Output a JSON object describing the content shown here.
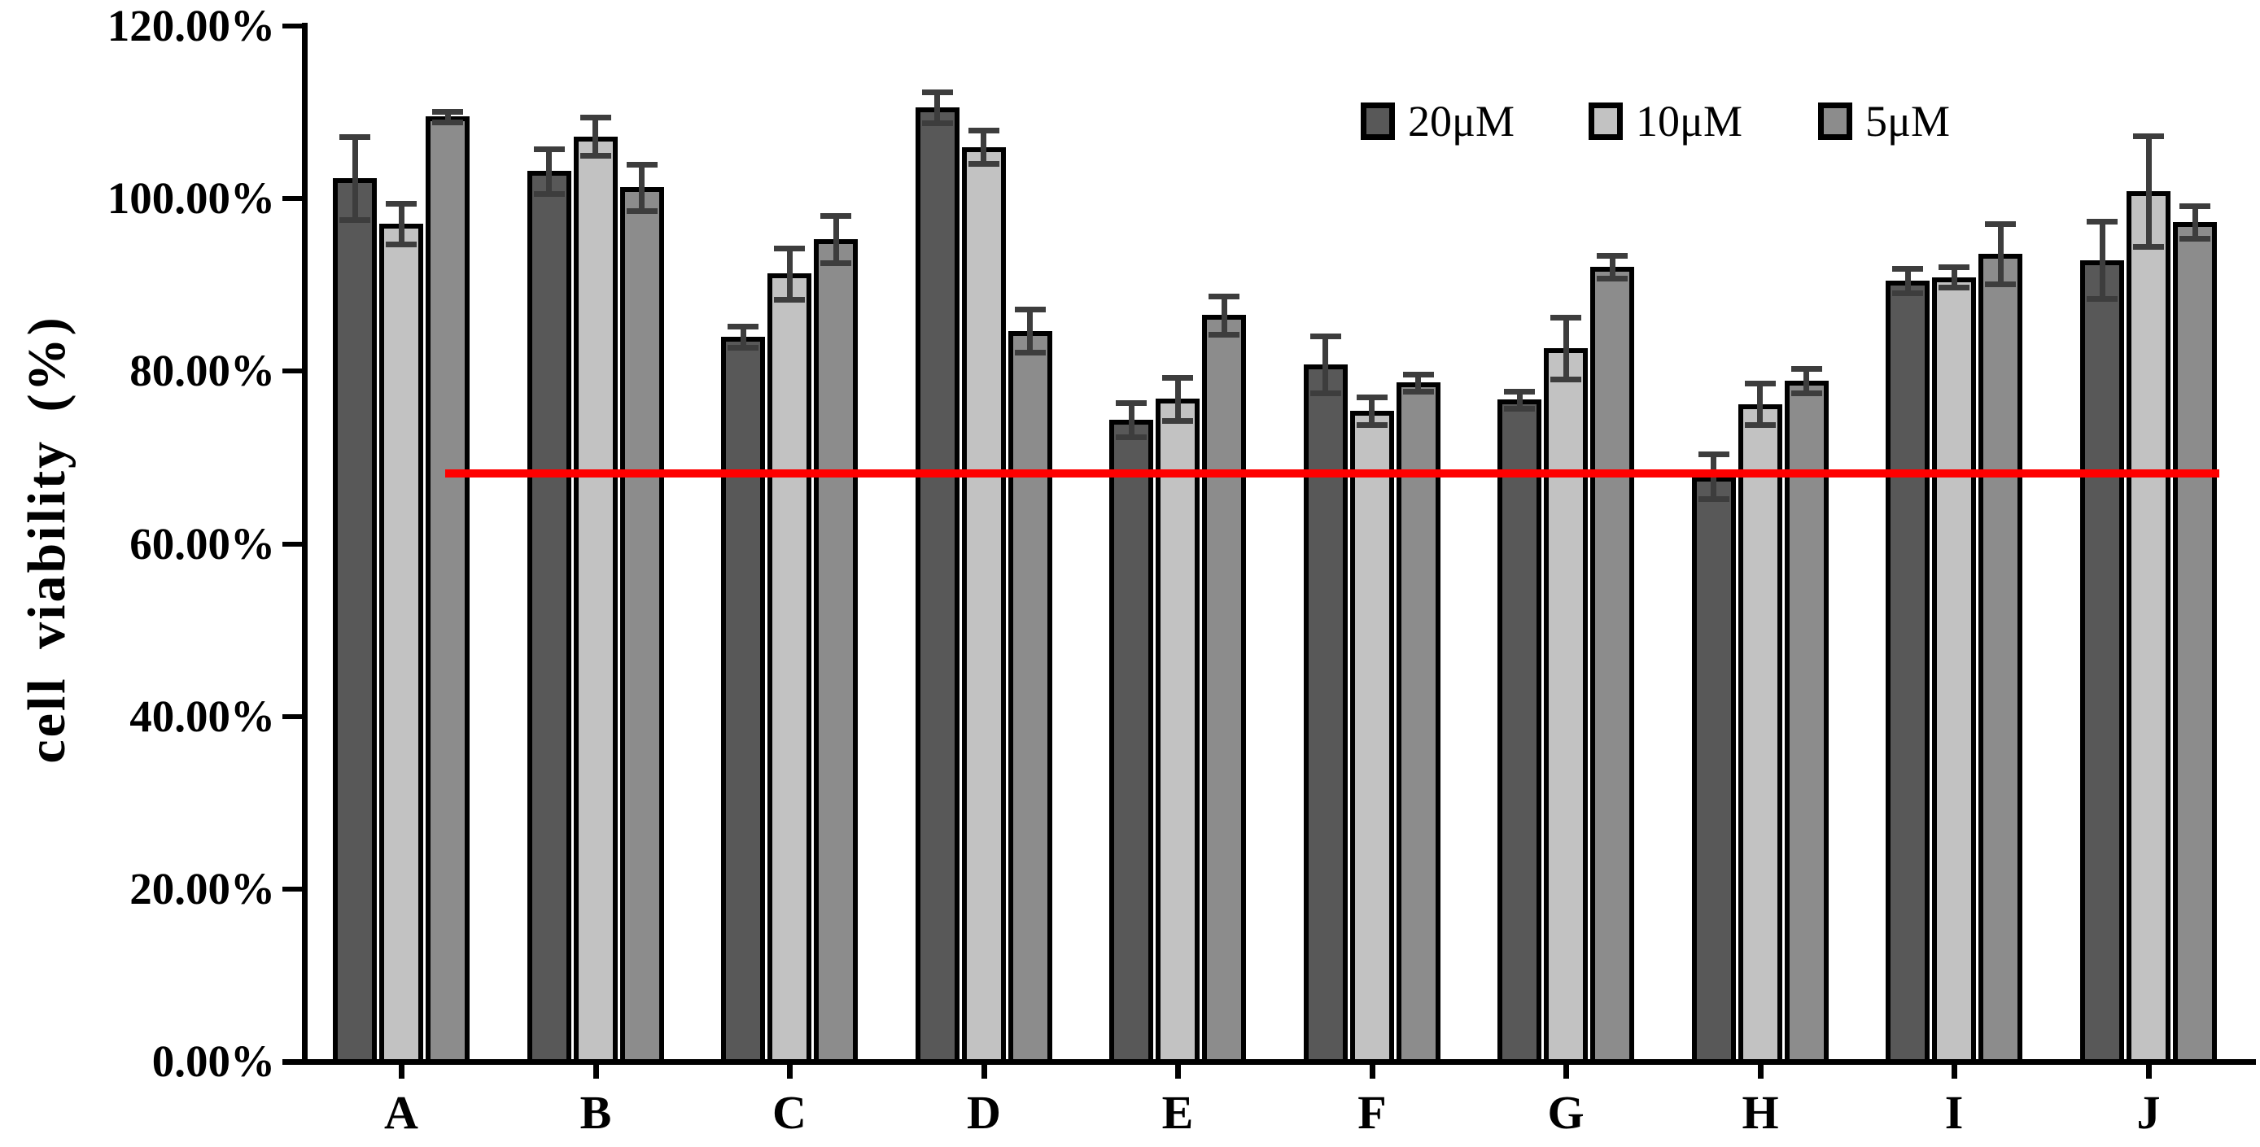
{
  "chart_data": {
    "type": "bar",
    "title": "",
    "xlabel": "",
    "ylabel": "cell viability (%)",
    "categories": [
      "A",
      "B",
      "C",
      "D",
      "E",
      "F",
      "G",
      "H",
      "I",
      "J"
    ],
    "series": [
      {
        "name": "20μM",
        "color": "#585858",
        "values": [
          102.4,
          103.2,
          84.0,
          110.6,
          74.4,
          80.8,
          76.7,
          67.8,
          90.5,
          92.9
        ],
        "errors": [
          4.8,
          2.6,
          1.2,
          1.8,
          2.0,
          3.3,
          1.0,
          2.6,
          1.4,
          4.5
        ]
      },
      {
        "name": "10μM",
        "color": "#c2c2c2",
        "values": [
          97.1,
          107.2,
          91.3,
          106.0,
          76.8,
          75.4,
          82.7,
          76.2,
          90.9,
          100.9
        ],
        "errors": [
          2.4,
          2.2,
          3.0,
          1.9,
          2.5,
          1.6,
          3.6,
          2.4,
          1.2,
          6.4
        ]
      },
      {
        "name": "5μM",
        "color": "#8c8c8c",
        "values": [
          109.5,
          101.3,
          95.3,
          84.7,
          86.5,
          78.7,
          92.1,
          78.9,
          93.6,
          97.3
        ],
        "errors": [
          0.6,
          2.7,
          2.7,
          2.5,
          2.2,
          1.0,
          1.3,
          1.4,
          3.5,
          1.9
        ]
      }
    ],
    "ylim": [
      0,
      120
    ],
    "ytick_step": 20,
    "ytick_labels": [
      "0.00%",
      "20.00%",
      "40.00%",
      "60.00%",
      "80.00%",
      "100.00%",
      "120.00%"
    ],
    "grid": false,
    "legend_position": "top-right",
    "error_bar_color": "#3d3d3d",
    "reference_line": {
      "value": 68.2,
      "color": "#ff0000"
    }
  }
}
